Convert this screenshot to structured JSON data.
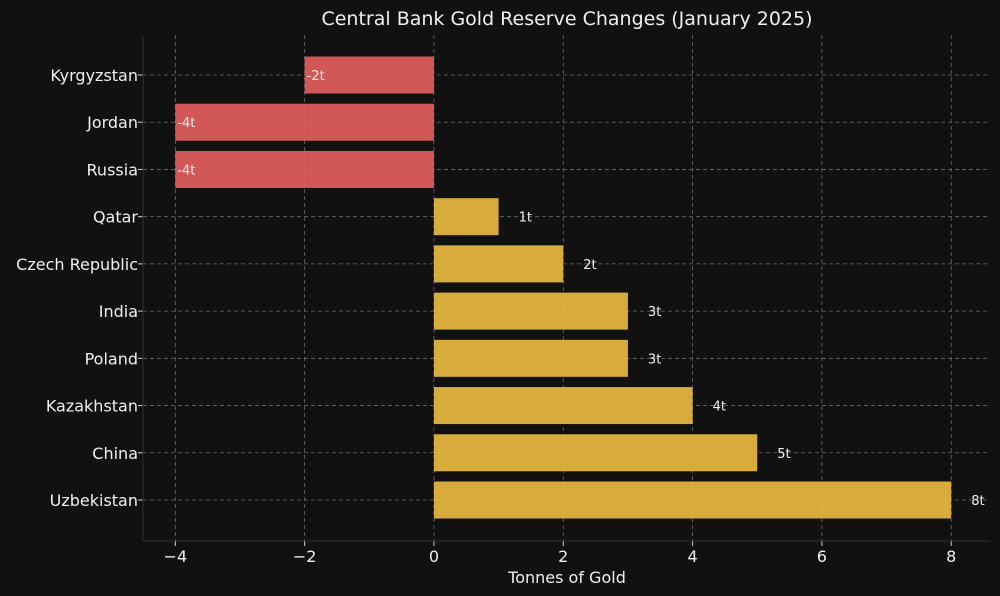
{
  "chart_data": {
    "type": "bar",
    "orientation": "horizontal",
    "title": "Central Bank Gold Reserve Changes (January 2025)",
    "xlabel": "Tonnes of Gold",
    "ylabel": "",
    "xlim": [
      -4.5,
      8.6
    ],
    "xticks": [
      -4,
      -2,
      0,
      2,
      4,
      6,
      8
    ],
    "xtick_labels": [
      "−4",
      "−2",
      "0",
      "2",
      "4",
      "6",
      "8"
    ],
    "grid": true,
    "categories": [
      "Kyrgyzstan",
      "Jordan",
      "Russia",
      "Qatar",
      "Czech Republic",
      "India",
      "Poland",
      "Kazakhstan",
      "China",
      "Uzbekistan"
    ],
    "values": [
      -2,
      -4,
      -4,
      1,
      2,
      3,
      3,
      4,
      5,
      8
    ],
    "value_labels": [
      "-2t",
      "-4t",
      "-4t",
      "1t",
      "2t",
      "3t",
      "3t",
      "4t",
      "5t",
      "8t"
    ],
    "colors": {
      "positive": "#e3b53f",
      "negative": "#dd5c5c",
      "background": "#111111",
      "text": "#f0f0f0"
    }
  }
}
